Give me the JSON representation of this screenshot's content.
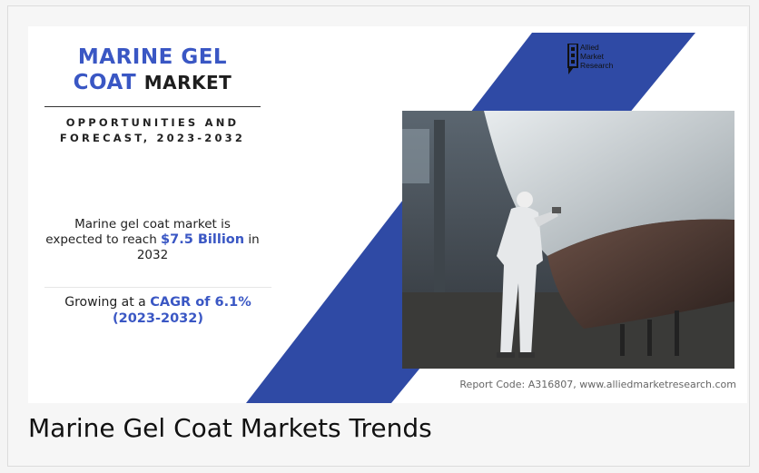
{
  "infographic": {
    "title_line1": "MARINE GEL",
    "title_line2_blue": "COAT",
    "title_line2_dark": "MARKET",
    "subtitle": "OPPORTUNITIES AND FORECAST, 2023-2032",
    "stat1_prefix": "Marine gel coat market is expected to reach ",
    "stat1_value": "$7.5 Billion",
    "stat1_suffix": " in 2032",
    "stat2_prefix": "Growing at a ",
    "stat2_value": "CAGR of 6.1% (2023-2032)",
    "logo_lines": [
      "Allied",
      "Market",
      "Research"
    ],
    "photo_icon": "boat-hull-painting-photo",
    "report_code": "Report Code: A316807, www.alliedmarketresearch.com",
    "accent_color": "#3a57c4",
    "stripe_color": "#2f4aa5"
  },
  "caption": "Marine Gel Coat Markets Trends"
}
